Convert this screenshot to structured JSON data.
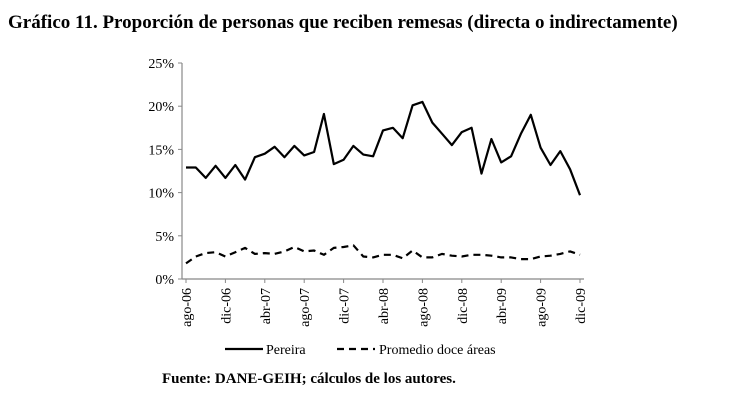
{
  "title": "Gráfico 11. Proporción de personas que reciben remesas (directa o indirectamente)",
  "source": "Fuente: DANE-GEIH; cálculos de los autores.",
  "chart_data": {
    "type": "line",
    "title": "Gráfico 11. Proporción de personas que reciben remesas (directa o indirectamente)",
    "xlabel": "",
    "ylabel": "",
    "ylim": [
      0,
      25
    ],
    "y_ticks": [
      "0%",
      "5%",
      "10%",
      "15%",
      "20%",
      "25%"
    ],
    "y_tick_values": [
      0,
      5,
      10,
      15,
      20,
      25
    ],
    "x_tick_labels": [
      "ago-06",
      "dic-06",
      "abr-07",
      "ago-07",
      "dic-07",
      "abr-08",
      "ago-08",
      "dic-08",
      "abr-09",
      "ago-09",
      "dic-09"
    ],
    "categories": [
      "ago-06",
      "sep-06",
      "oct-06",
      "nov-06",
      "dic-06",
      "ene-07",
      "feb-07",
      "mar-07",
      "abr-07",
      "may-07",
      "jun-07",
      "jul-07",
      "ago-07",
      "sep-07",
      "oct-07",
      "nov-07",
      "dic-07",
      "ene-08",
      "feb-08",
      "mar-08",
      "abr-08",
      "may-08",
      "jun-08",
      "jul-08",
      "ago-08",
      "sep-08",
      "oct-08",
      "nov-08",
      "dic-08",
      "ene-09",
      "feb-09",
      "mar-09",
      "abr-09",
      "may-09",
      "jun-09",
      "jul-09",
      "ago-09",
      "sep-09",
      "oct-09",
      "nov-09",
      "dic-09"
    ],
    "grid": false,
    "legend": "bottom",
    "series": [
      {
        "name": "Pereira",
        "style": "solid",
        "color": "#000000",
        "values": [
          12.9,
          12.9,
          11.7,
          13.1,
          11.7,
          13.2,
          11.5,
          14.1,
          14.5,
          15.3,
          14.1,
          15.4,
          14.3,
          14.7,
          19.1,
          13.3,
          13.8,
          15.4,
          14.4,
          14.2,
          17.2,
          17.5,
          16.3,
          20.1,
          20.5,
          18.1,
          16.8,
          15.5,
          17.0,
          17.5,
          12.2,
          16.2,
          13.5,
          14.2,
          16.8,
          19.0,
          15.2,
          13.2,
          14.8,
          12.7,
          9.7
        ]
      },
      {
        "name": "Promedio doce áreas",
        "style": "dashed",
        "color": "#000000",
        "values": [
          1.8,
          2.6,
          3.0,
          3.1,
          2.6,
          3.1,
          3.6,
          2.9,
          3.0,
          2.9,
          3.2,
          3.7,
          3.2,
          3.3,
          2.8,
          3.6,
          3.7,
          3.9,
          2.6,
          2.5,
          2.8,
          2.8,
          2.4,
          3.3,
          2.5,
          2.5,
          2.9,
          2.7,
          2.6,
          2.8,
          2.8,
          2.7,
          2.5,
          2.5,
          2.3,
          2.3,
          2.6,
          2.7,
          2.9,
          3.2,
          2.8
        ]
      }
    ]
  }
}
